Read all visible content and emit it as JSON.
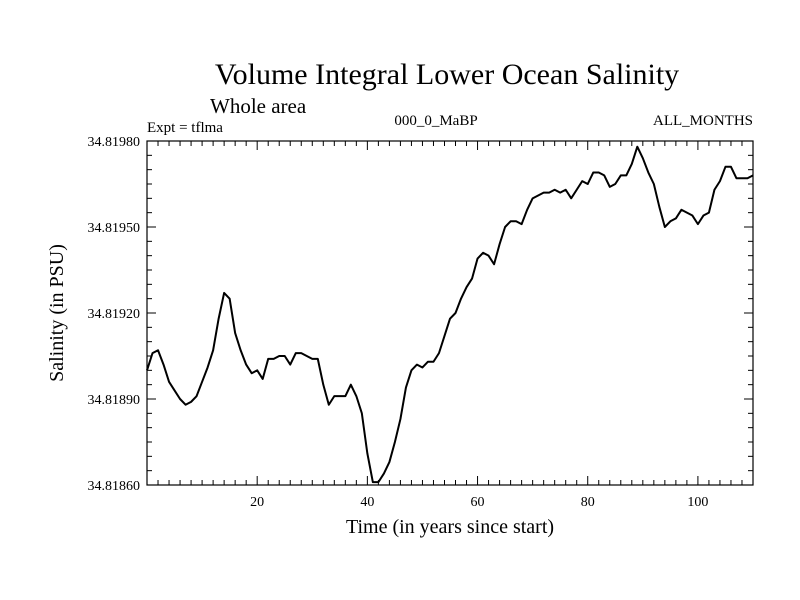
{
  "colors": {
    "line": "#000000",
    "background": "#ffffff"
  },
  "chart_data": {
    "type": "line",
    "title": "Volume Integral Lower Ocean Salinity",
    "subtitle": "Whole area",
    "experiment_label": "Expt = tflma",
    "run_label": "000_0_MaBP",
    "period_label": "ALL_MONTHS",
    "xlabel": "Time (in years since start)",
    "ylabel": "Salinity (in PSU)",
    "xlim": [
      0,
      110
    ],
    "ylim": [
      34.8186,
      34.8198
    ],
    "x_ticks": [
      20,
      40,
      60,
      80,
      100
    ],
    "x_tick_labels": [
      "20",
      "40",
      "60",
      "80",
      "100"
    ],
    "y_ticks": [
      34.8186,
      34.8189,
      34.8192,
      34.8195,
      34.8198
    ],
    "y_tick_labels": [
      "34.81860",
      "34.81890",
      "34.81920",
      "34.81950",
      "34.81980"
    ],
    "series": [
      {
        "name": "Salinity",
        "x": [
          0,
          1,
          2,
          3,
          4,
          5,
          6,
          7,
          8,
          9,
          10,
          11,
          12,
          13,
          14,
          15,
          16,
          17,
          18,
          19,
          20,
          21,
          22,
          23,
          24,
          25,
          26,
          27,
          28,
          29,
          30,
          31,
          32,
          33,
          34,
          35,
          36,
          37,
          38,
          39,
          40,
          41,
          42,
          43,
          44,
          45,
          46,
          47,
          48,
          49,
          50,
          51,
          52,
          53,
          54,
          55,
          56,
          57,
          58,
          59,
          60,
          61,
          62,
          63,
          64,
          65,
          66,
          67,
          68,
          69,
          70,
          71,
          72,
          73,
          74,
          75,
          76,
          77,
          78,
          79,
          80,
          81,
          82,
          83,
          84,
          85,
          86,
          87,
          88,
          89,
          90,
          91,
          92,
          93,
          94,
          95,
          96,
          97,
          98,
          99,
          100,
          101,
          102,
          103,
          104,
          105,
          106,
          107,
          108,
          109,
          110
        ],
        "values": [
          34.819,
          34.81906,
          34.81907,
          34.81902,
          34.81896,
          34.81893,
          34.8189,
          34.81888,
          34.81889,
          34.81891,
          34.81896,
          34.81901,
          34.81907,
          34.81918,
          34.81927,
          34.81925,
          34.81913,
          34.81907,
          34.81902,
          34.81899,
          34.819,
          34.81897,
          34.81904,
          34.81904,
          34.81905,
          34.81905,
          34.81902,
          34.81906,
          34.81906,
          34.81905,
          34.81904,
          34.81904,
          34.81895,
          34.81888,
          34.81891,
          34.81891,
          34.81891,
          34.81895,
          34.81891,
          34.81885,
          34.81871,
          34.81861,
          34.81861,
          34.81864,
          34.81868,
          34.81875,
          34.81883,
          34.81894,
          34.819,
          34.81902,
          34.81901,
          34.81903,
          34.81903,
          34.81906,
          34.81912,
          34.81918,
          34.8192,
          34.81925,
          34.81929,
          34.81932,
          34.81939,
          34.81941,
          34.8194,
          34.81937,
          34.81944,
          34.8195,
          34.81952,
          34.81952,
          34.81951,
          34.81956,
          34.8196,
          34.81961,
          34.81962,
          34.81962,
          34.81963,
          34.81962,
          34.81963,
          34.8196,
          34.81963,
          34.81966,
          34.81965,
          34.81969,
          34.81969,
          34.81968,
          34.81964,
          34.81965,
          34.81968,
          34.81968,
          34.81972,
          34.81978,
          34.81974,
          34.81969,
          34.81965,
          34.81957,
          34.8195,
          34.81952,
          34.81953,
          34.81956,
          34.81955,
          34.81954,
          34.81951,
          34.81954,
          34.81955,
          34.81963,
          34.81966,
          34.81971,
          34.81971,
          34.81967,
          34.81967,
          34.81967,
          34.81968
        ]
      }
    ]
  }
}
